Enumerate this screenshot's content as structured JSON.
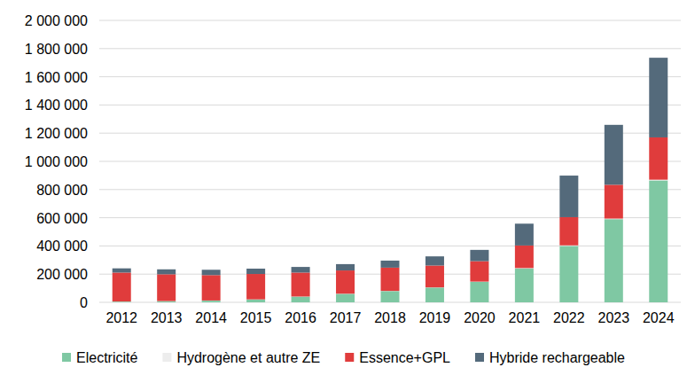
{
  "chart_data": {
    "type": "bar",
    "stacked": true,
    "grid": true,
    "legend": "bottom",
    "categories": [
      "2012",
      "2013",
      "2014",
      "2015",
      "2016",
      "2017",
      "2018",
      "2019",
      "2020",
      "2021",
      "2022",
      "2023",
      "2024"
    ],
    "ylim": [
      0,
      2000000
    ],
    "yticks": [
      0,
      {
        "value": 200000,
        "label": "200 000"
      },
      {
        "value": 400000,
        "label": "400 000"
      },
      {
        "value": 600000,
        "label": "600 000"
      },
      {
        "value": 800000,
        "label": "800 000"
      },
      {
        "value": 1000000,
        "label": "1 000 000"
      },
      {
        "value": 1200000,
        "label": "1 200 000"
      },
      {
        "value": 1400000,
        "label": "1 400 000"
      },
      {
        "value": 1600000,
        "label": "1 600 000"
      },
      {
        "value": 1800000,
        "label": "1 800 000"
      },
      {
        "value": 2000000,
        "label": "2 000 000"
      }
    ],
    "series": [
      {
        "name": "Electricité",
        "color": "#7fc8a3",
        "values": [
          5000,
          8000,
          12000,
          20000,
          40000,
          60000,
          80000,
          105000,
          145000,
          240000,
          400000,
          590000,
          865000
        ]
      },
      {
        "name": "Hydrogène et autre ZE",
        "color": "#ededed",
        "values": [
          1000,
          1000,
          1000,
          1000,
          1000,
          1000,
          1000,
          1000,
          2000,
          3000,
          4000,
          4000,
          5000
        ]
      },
      {
        "name": "Essence+GPL",
        "color": "#e03c3c",
        "values": [
          205000,
          190000,
          180000,
          180000,
          170000,
          165000,
          165000,
          155000,
          145000,
          160000,
          200000,
          240000,
          300000
        ]
      },
      {
        "name": "Hybride rechargeable",
        "color": "#546a7b",
        "values": [
          30000,
          35000,
          38000,
          38000,
          40000,
          45000,
          50000,
          65000,
          80000,
          155000,
          295000,
          425000,
          565000
        ]
      }
    ]
  }
}
